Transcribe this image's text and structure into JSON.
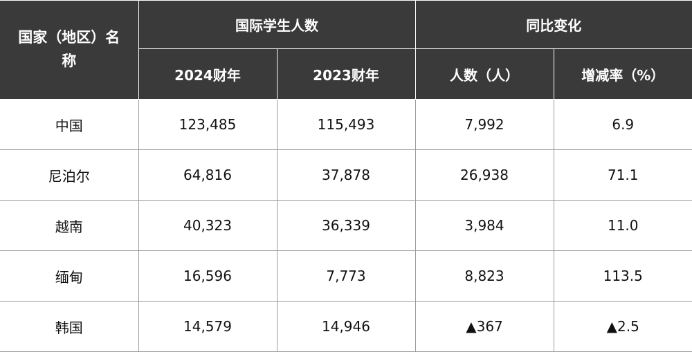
{
  "table": {
    "header": {
      "country": "国家（地区）名称",
      "students": "国际学生人数",
      "change": "同比变化",
      "columns": [
        "2024财年",
        "2023财年",
        "人数（人）",
        "增减率（%）"
      ]
    },
    "rows": [
      [
        "中国",
        "123,485",
        "115,493",
        "7,992",
        "6.9"
      ],
      [
        "尼泊尔",
        "64,816",
        "37,878",
        "26,938",
        "71.1"
      ],
      [
        "越南",
        "40,323",
        "36,339",
        "3,984",
        "11.0"
      ],
      [
        "缅甸",
        "16,596",
        "7,773",
        "8,823",
        "113.5"
      ],
      [
        "韩国",
        "14,579",
        "14,946",
        "▲367",
        "▲2.5"
      ]
    ]
  }
}
